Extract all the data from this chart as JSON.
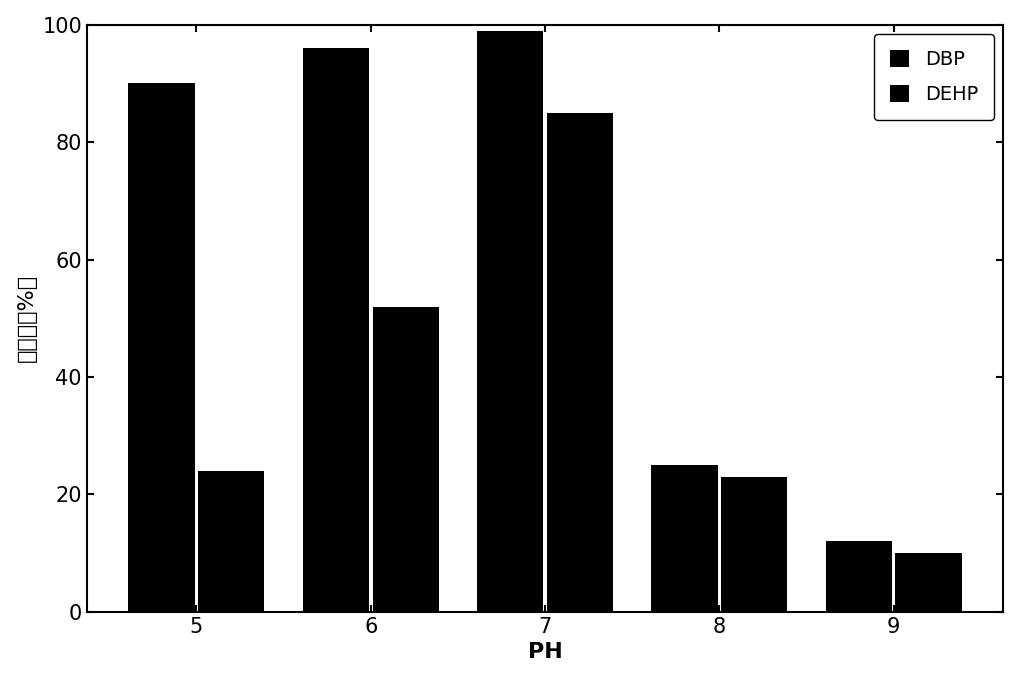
{
  "categories": [
    5,
    6,
    7,
    8,
    9
  ],
  "DBP": [
    90,
    96,
    99,
    25,
    12
  ],
  "DEHP": [
    24,
    52,
    85,
    23,
    10
  ],
  "bar_color_DBP": "#000000",
  "bar_color_DEHP": "#000000",
  "ylabel": "降解率（%）",
  "xlabel": "PH",
  "ylim": [
    0,
    100
  ],
  "yticks": [
    0,
    20,
    40,
    60,
    80,
    100
  ],
  "legend_labels": [
    "DBP",
    "DEHP"
  ],
  "bar_width": 0.38,
  "bar_gap": 0.02,
  "label_fontsize": 16,
  "tick_fontsize": 15,
  "legend_fontsize": 14
}
